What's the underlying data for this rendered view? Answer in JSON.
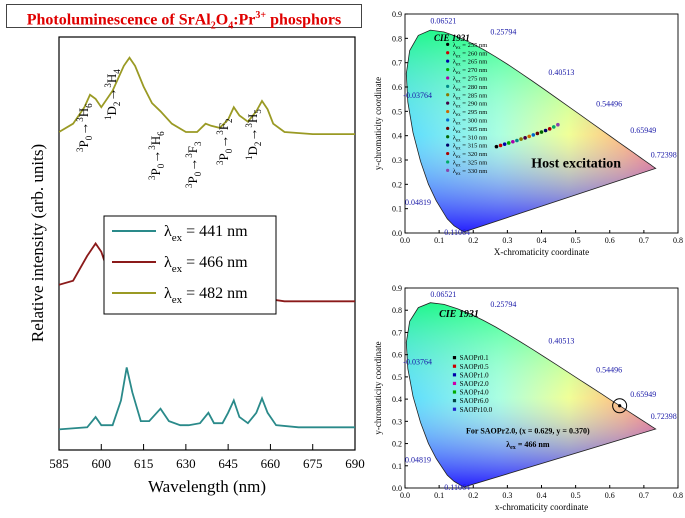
{
  "title": {
    "main": "Photoluminescence of SrAl",
    "sub1": "2",
    "mid": "O",
    "sub2": "4",
    "tail": ":Pr",
    "sup": "3+",
    "tail2": " phosphors"
  },
  "chart_data": [
    {
      "type": "line",
      "title": "Photoluminescence of SrAl2O4:Pr3+ phosphors",
      "xlabel": "Wavelength (nm)",
      "ylabel": "Relative intensity (arb. units)",
      "xlim": [
        585,
        690
      ],
      "xticks": [
        "585",
        "600",
        "615",
        "630",
        "645",
        "660",
        "675",
        "690"
      ],
      "legend": {
        "position": "center-left",
        "entries": [
          {
            "label": "λex = 441 nm",
            "prefix": "λ",
            "sub": "ex",
            "value": " = 441 nm",
            "color": "#2a8a8a"
          },
          {
            "label": "λex = 466 nm",
            "prefix": "λ",
            "sub": "ex",
            "value": " = 466 nm",
            "color": "#8b1a1a"
          },
          {
            "label": "λex = 482 nm",
            "prefix": "λ",
            "sub": "ex",
            "value": " = 482 nm",
            "color": "#9a9a24"
          }
        ]
      },
      "series": [
        {
          "name": "λex = 441 nm",
          "color": "#2a8a8a",
          "baseline": 0.05,
          "points": [
            [
              585,
              0.05
            ],
            [
              595,
              0.055
            ],
            [
              598,
              0.08
            ],
            [
              600,
              0.06
            ],
            [
              604,
              0.06
            ],
            [
              607,
              0.12
            ],
            [
              609,
              0.2
            ],
            [
              611,
              0.14
            ],
            [
              614,
              0.07
            ],
            [
              617,
              0.07
            ],
            [
              621,
              0.1
            ],
            [
              624,
              0.07
            ],
            [
              628,
              0.06
            ],
            [
              631,
              0.06
            ],
            [
              635,
              0.065
            ],
            [
              638,
              0.09
            ],
            [
              640,
              0.065
            ],
            [
              643,
              0.065
            ],
            [
              645,
              0.09
            ],
            [
              647,
              0.12
            ],
            [
              649,
              0.08
            ],
            [
              652,
              0.065
            ],
            [
              655,
              0.09
            ],
            [
              657,
              0.125
            ],
            [
              659,
              0.09
            ],
            [
              662,
              0.06
            ],
            [
              670,
              0.055
            ],
            [
              690,
              0.055
            ]
          ]
        },
        {
          "name": "λex = 466 nm",
          "color": "#8b1a1a",
          "baseline": 0.4,
          "points": [
            [
              585,
              0.4
            ],
            [
              590,
              0.41
            ],
            [
              595,
              0.47
            ],
            [
              598,
              0.5
            ],
            [
              600,
              0.48
            ],
            [
              602,
              0.44
            ],
            [
              604,
              0.4
            ],
            [
              607,
              0.375
            ],
            [
              612,
              0.365
            ],
            [
              616,
              0.365
            ],
            [
              620,
              0.37
            ],
            [
              625,
              0.365
            ],
            [
              630,
              0.36
            ],
            [
              634,
              0.365
            ],
            [
              637,
              0.38
            ],
            [
              639,
              0.395
            ],
            [
              641,
              0.385
            ],
            [
              643,
              0.365
            ],
            [
              646,
              0.375
            ],
            [
              648,
              0.39
            ],
            [
              650,
              0.37
            ],
            [
              653,
              0.36
            ],
            [
              656,
              0.37
            ],
            [
              658,
              0.38
            ],
            [
              660,
              0.365
            ],
            [
              665,
              0.36
            ],
            [
              690,
              0.36
            ]
          ]
        },
        {
          "name": "λex = 482 nm",
          "color": "#9a9a24",
          "baseline": 0.75,
          "points": [
            [
              585,
              0.77
            ],
            [
              590,
              0.79
            ],
            [
              594,
              0.83
            ],
            [
              596,
              0.86
            ],
            [
              598,
              0.85
            ],
            [
              600,
              0.83
            ],
            [
              604,
              0.87
            ],
            [
              608,
              0.93
            ],
            [
              610,
              0.95
            ],
            [
              612,
              0.93
            ],
            [
              615,
              0.88
            ],
            [
              618,
              0.84
            ],
            [
              621,
              0.82
            ],
            [
              625,
              0.79
            ],
            [
              630,
              0.77
            ],
            [
              634,
              0.77
            ],
            [
              637,
              0.79
            ],
            [
              639,
              0.785
            ],
            [
              642,
              0.78
            ],
            [
              645,
              0.8
            ],
            [
              647,
              0.83
            ],
            [
              649,
              0.81
            ],
            [
              652,
              0.795
            ],
            [
              655,
              0.82
            ],
            [
              657,
              0.845
            ],
            [
              659,
              0.825
            ],
            [
              661,
              0.79
            ],
            [
              665,
              0.77
            ],
            [
              675,
              0.765
            ],
            [
              690,
              0.765
            ]
          ]
        }
      ],
      "annotations": [
        {
          "pre": "3",
          "main": "P",
          "sub": "0",
          "arrow": "→",
          "sup2": "3",
          "main2": "H",
          "sub2": "6"
        },
        {
          "pre": "1",
          "main": "D",
          "sub": "2",
          "arrow": "→",
          "sup2": "3",
          "main2": "H",
          "sub2": "4"
        },
        {
          "pre": "3",
          "main": "P",
          "sub": "0",
          "arrow": "→",
          "sup2": "3",
          "main2": "H",
          "sub2": "6"
        },
        {
          "pre": "3",
          "main": "P",
          "sub": "0",
          "arrow": "→",
          "sup2": "3",
          "main2": "F",
          "sub2": "3"
        },
        {
          "pre": "3",
          "main": "P",
          "sub": "0",
          "arrow": "→",
          "sup2": "3",
          "main2": "F",
          "sub2": "2"
        },
        {
          "pre": "1",
          "main": "D",
          "sub": "2",
          "arrow": "→",
          "sup2": "3",
          "main2": "H",
          "sub2": "5"
        }
      ]
    },
    {
      "type": "scatter",
      "title": "CIE 1931",
      "xlabel": "X-chromaticity coordinate",
      "ylabel": "y-chromaticity coordinate",
      "xlim": [
        0.0,
        0.8
      ],
      "ylim": [
        0.0,
        0.9
      ],
      "xticks": [
        "0.0",
        "0.1",
        "0.2",
        "0.3",
        "0.4",
        "0.5",
        "0.6",
        "0.7",
        "0.8"
      ],
      "yticks": [
        "0.0",
        "0.1",
        "0.2",
        "0.3",
        "0.4",
        "0.5",
        "0.6",
        "0.7",
        "0.8",
        "0.9"
      ],
      "locus_labels": [
        "0.06521",
        "0.25794",
        "0.40513",
        "0.54496",
        "0.65949",
        "0.72398",
        "-0.03764",
        "0.04819",
        "0.11064"
      ],
      "annotation": "Host excitation",
      "legend_prefix": "λ",
      "legend_sub": "ex",
      "legend_entries": [
        "255 nm",
        "260 nm",
        "265 nm",
        "270 nm",
        "275 nm",
        "280 nm",
        "285 nm",
        "290 nm",
        "295 nm",
        "300 nm",
        "305 nm",
        "310 nm",
        "315 nm",
        "320 nm",
        "325 nm",
        "330 nm"
      ],
      "points": [
        [
          0.268,
          0.355
        ],
        [
          0.28,
          0.36
        ],
        [
          0.292,
          0.365
        ],
        [
          0.304,
          0.37
        ],
        [
          0.316,
          0.375
        ],
        [
          0.328,
          0.38
        ],
        [
          0.34,
          0.386
        ],
        [
          0.352,
          0.391
        ],
        [
          0.364,
          0.397
        ],
        [
          0.376,
          0.403
        ],
        [
          0.388,
          0.409
        ],
        [
          0.4,
          0.415
        ],
        [
          0.412,
          0.421
        ],
        [
          0.424,
          0.428
        ],
        [
          0.436,
          0.436
        ],
        [
          0.448,
          0.445
        ]
      ]
    },
    {
      "type": "scatter",
      "title": "CIE 1931",
      "xlabel": "x-chromaticity coordinate",
      "ylabel": "y-chromaticity coordinate",
      "xlim": [
        0.0,
        0.8
      ],
      "ylim": [
        0.0,
        0.9
      ],
      "xticks": [
        "0.0",
        "0.1",
        "0.2",
        "0.3",
        "0.4",
        "0.5",
        "0.6",
        "0.7",
        "0.8"
      ],
      "yticks": [
        "0.0",
        "0.1",
        "0.2",
        "0.3",
        "0.4",
        "0.5",
        "0.6",
        "0.7",
        "0.8",
        "0.9"
      ],
      "locus_labels": [
        "0.06521",
        "0.25794",
        "0.40513",
        "0.54496",
        "0.65949",
        "0.72398",
        "-0.03764",
        "0.04819",
        "0.11064"
      ],
      "legend_entries": [
        "SAOPr0.1",
        "SAOPr0.5",
        "SAOPr1.0",
        "SAOPr2.0",
        "SAOPr4.0",
        "SAOPr6.0",
        "SAOPr10.0"
      ],
      "annotation": "For SAOPr2.0, (x = 0.629, y = 0.370)",
      "annotation2_prefix": "λ",
      "annotation2_sub": "ex",
      "annotation2_value": " = 466 nm",
      "points": [
        [
          0.629,
          0.37
        ]
      ]
    }
  ]
}
